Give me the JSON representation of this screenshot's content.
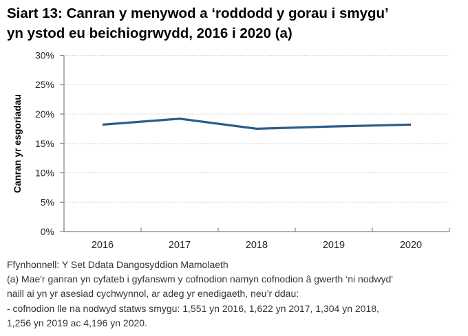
{
  "page": {
    "title_line1": "Siart 13: Canran y menywod a ‘roddodd y gorau i smygu’",
    "title_line2": "yn ystod eu beichiogrwydd, 2016 i 2020 (a)"
  },
  "chart_data": {
    "type": "line",
    "title": "Siart 13: Canran y menywod a ‘roddodd y gorau i smygu’ yn ystod eu beichiogrwydd, 2016 i 2020 (a)",
    "categories": [
      "2016",
      "2017",
      "2018",
      "2019",
      "2020"
    ],
    "values": [
      18.2,
      19.2,
      17.5,
      17.9,
      18.2
    ],
    "xlabel": "",
    "ylabel": "Canran yr esgoriadau",
    "ylim": [
      0,
      30
    ],
    "ytick_step": 5,
    "ytick_suffix": "%",
    "grid": "horizontal",
    "grid_style": "dotted",
    "legend": "none",
    "line_color": "#2b5d8b"
  },
  "colors": {
    "line": "#2b5d8b",
    "gridline": "#c9c9c9",
    "axis": "#808080",
    "tick_label": "#262626",
    "title_text": "#000000",
    "footer_text": "#333333"
  },
  "footer": {
    "lines": [
      "Ffynhonnell: Y Set Ddata Dangosyddion Mamolaeth",
      "(a) Mae'r ganran yn cyfateb i gyfanswm y cofnodion namyn cofnodion â gwerth ‘ni nodwyd'",
      "naill ai yn yr asesiad cychwynnol, ar adeg yr enedigaeth, neu’r ddau:",
      "- cofnodion lle na nodwyd statws smygu: 1,551 yn 2016, 1,622 yn 2017, 1,304 yn 2018,",
      "1,256 yn 2019 ac 4,196 yn 2020."
    ]
  }
}
